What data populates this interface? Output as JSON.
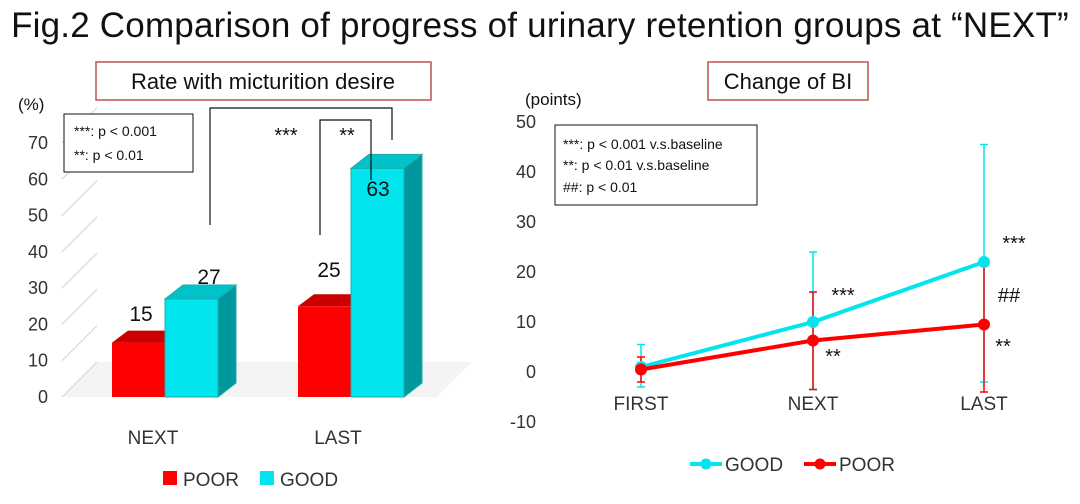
{
  "figure_title": "Fig.2 Comparison of progress of urinary retention groups at “NEXT”",
  "colors": {
    "poor": "#ff0000",
    "good": "#00e5ee",
    "panel_border": "#c0504d"
  },
  "chart_data": [
    {
      "type": "bar",
      "title": "Rate with micturition desire",
      "ylabel": "(%)",
      "ylim": [
        0,
        70
      ],
      "yticks": [
        "0",
        "10",
        "20",
        "30",
        "40",
        "50",
        "60",
        "70"
      ],
      "categories": [
        "NEXT",
        "LAST"
      ],
      "series": [
        {
          "name": "POOR",
          "values": [
            15,
            25
          ],
          "labels": [
            "15",
            "25"
          ]
        },
        {
          "name": "GOOD",
          "values": [
            27,
            63
          ],
          "labels": [
            "27",
            "63"
          ]
        }
      ],
      "legend": "bottom",
      "grid": false,
      "significance": {
        "between_periods": "***",
        "within_last": "**"
      },
      "annotation_lines": [
        "***: p < 0.001",
        "**: p < 0.01"
      ]
    },
    {
      "type": "line",
      "title": "Change of BI",
      "ylabel": "(points)",
      "ylim": [
        -10,
        50
      ],
      "yticks": [
        "-10",
        "0",
        "10",
        "20",
        "30",
        "40",
        "50"
      ],
      "categories": [
        "FIRST",
        "NEXT",
        "LAST"
      ],
      "series": [
        {
          "name": "GOOD",
          "values": [
            1,
            10,
            22
          ],
          "error_up": [
            5.5,
            24,
            45.5
          ],
          "error_down": [
            -3,
            -3.5,
            -2
          ],
          "marks": [
            "",
            "***",
            "***"
          ]
        },
        {
          "name": "POOR",
          "values": [
            0.5,
            6.3,
            9.5
          ],
          "error_up": [
            3,
            16,
            21.5
          ],
          "error_down": [
            -2,
            -3.5,
            -4
          ],
          "marks": [
            "",
            "**",
            "**"
          ]
        }
      ],
      "between_group_mark": "##",
      "legend": "bottom",
      "grid": false,
      "annotation_lines": [
        "***: p < 0.001 v.s.baseline",
        "**: p < 0.01 v.s.baseline",
        "##: p < 0.01"
      ]
    }
  ]
}
